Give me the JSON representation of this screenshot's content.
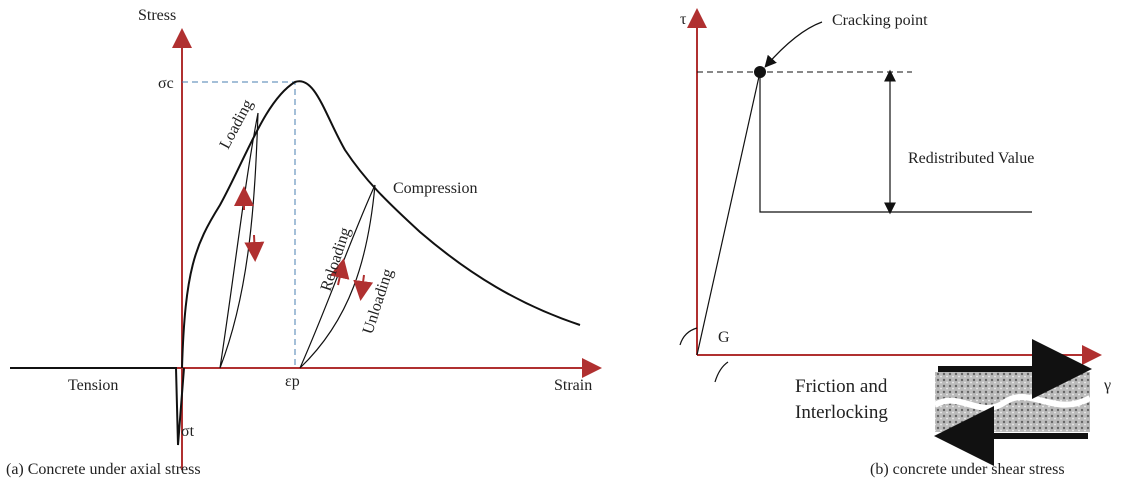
{
  "left": {
    "y_axis": "Stress",
    "x_axis": "Strain",
    "peak_stress": "σc",
    "peak_strain": "εp",
    "tensile_stress": "σt",
    "loading": "Loading",
    "compression": "Compression",
    "reloading": "Reloading",
    "unloading": "Unloading",
    "tension": "Tension",
    "caption": "(a) Concrete under axial stress"
  },
  "right": {
    "y_axis": "τ",
    "x_axis": "γ",
    "cracking": "Cracking point",
    "redistributed": "Redistributed Value",
    "modulus": "G",
    "friction_1": "Friction and",
    "friction_2": "Interlocking",
    "caption": "(b) concrete under shear stress"
  }
}
